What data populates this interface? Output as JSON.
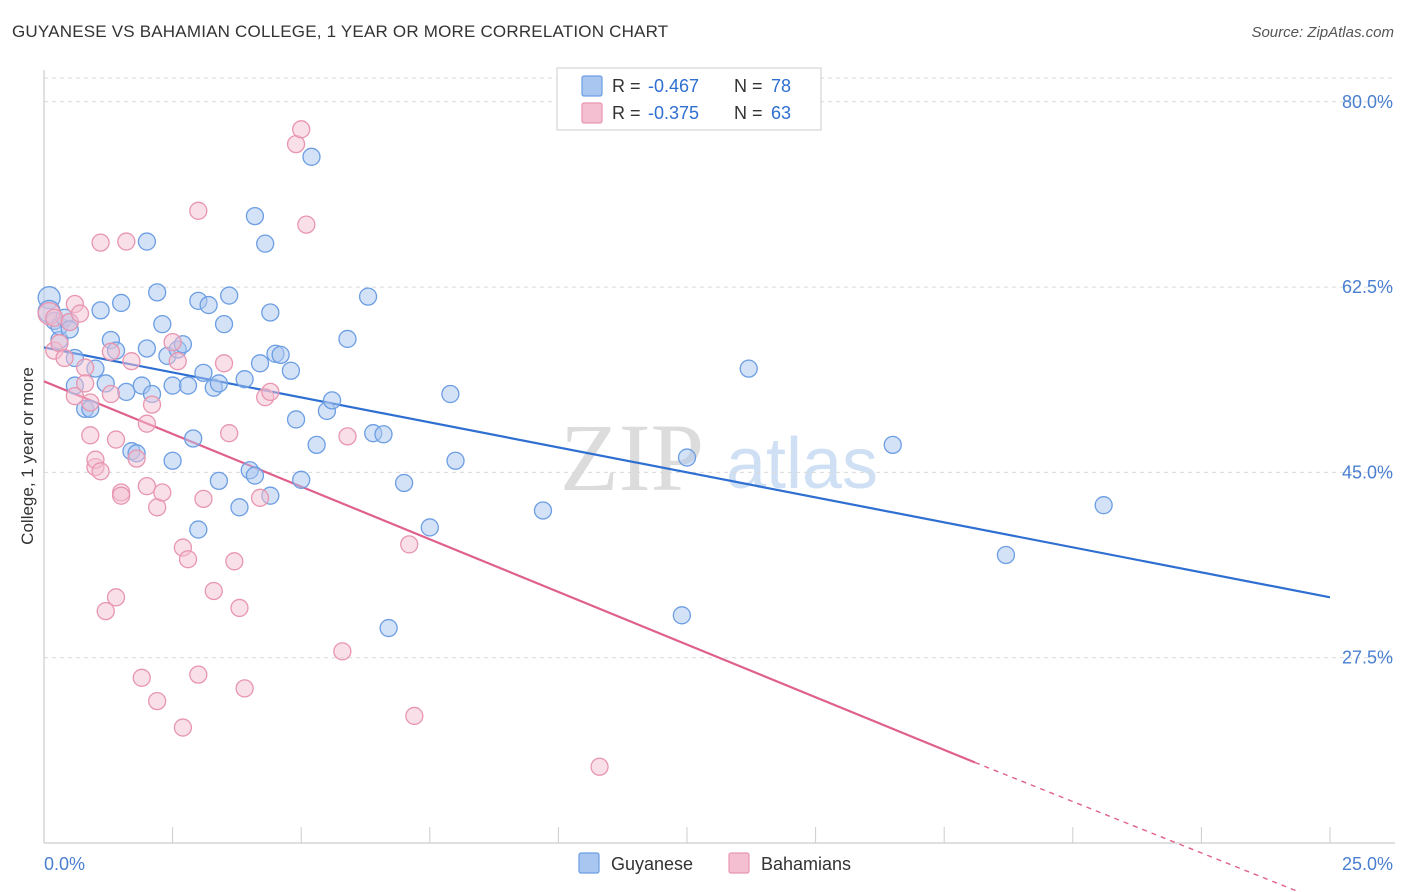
{
  "header": {
    "title": "GUYANESE VS BAHAMIAN COLLEGE, 1 YEAR OR MORE CORRELATION CHART",
    "source": "Source: ZipAtlas.com"
  },
  "watermark": {
    "zip": "ZIP",
    "atlas": "atlas"
  },
  "chart_data": {
    "type": "scatter",
    "title": "GUYANESE VS BAHAMIAN COLLEGE, 1 YEAR OR MORE CORRELATION CHART",
    "xlabel": "",
    "ylabel": "College, 1 year or more",
    "xlim": [
      0,
      25
    ],
    "ylim": [
      10,
      83
    ],
    "x_tick_labels": [
      "0.0%",
      "25.0%"
    ],
    "y_ticks": [
      27.5,
      45.0,
      62.5,
      80.0
    ],
    "y_tick_labels": [
      "27.5%",
      "45.0%",
      "62.5%",
      "80.0%"
    ],
    "grid": true,
    "legend": {
      "position": "top-center",
      "entries": [
        {
          "r_label": "R =",
          "r_value": "-0.467",
          "n_label": "N =",
          "n_value": "78"
        },
        {
          "r_label": "R =",
          "r_value": "-0.375",
          "n_label": "N =",
          "n_value": "63"
        }
      ]
    },
    "bottom_legend": [
      "Guyanese",
      "Bahamians"
    ],
    "series": [
      {
        "name": "Guyanese",
        "color": "#6c9ee3",
        "fill": "#a9c6f0",
        "line_color": "#2e6fd1",
        "trend": {
          "x": [
            0,
            25
          ],
          "y": [
            56.8,
            33.2
          ],
          "solid_until": 25
        },
        "points": [
          [
            0.1,
            61.5
          ],
          [
            0.1,
            60.2
          ],
          [
            0.2,
            59.3
          ],
          [
            0.3,
            57.5
          ],
          [
            0.3,
            58.8
          ],
          [
            0.4,
            59.6
          ],
          [
            0.5,
            59.2
          ],
          [
            0.5,
            58.5
          ],
          [
            0.6,
            55.8
          ],
          [
            0.6,
            53.2
          ],
          [
            0.8,
            51.0
          ],
          [
            0.9,
            51.0
          ],
          [
            1.0,
            54.8
          ],
          [
            1.1,
            60.3
          ],
          [
            1.2,
            53.4
          ],
          [
            1.3,
            57.5
          ],
          [
            1.4,
            56.5
          ],
          [
            1.5,
            61.0
          ],
          [
            1.6,
            52.6
          ],
          [
            1.7,
            47.0
          ],
          [
            1.8,
            46.8
          ],
          [
            1.9,
            53.2
          ],
          [
            2.0,
            56.7
          ],
          [
            2.0,
            66.8
          ],
          [
            2.1,
            52.4
          ],
          [
            2.2,
            62.0
          ],
          [
            2.3,
            59.0
          ],
          [
            2.4,
            56.0
          ],
          [
            2.5,
            53.2
          ],
          [
            2.5,
            46.1
          ],
          [
            2.6,
            56.6
          ],
          [
            2.7,
            57.1
          ],
          [
            2.8,
            53.2
          ],
          [
            2.9,
            48.2
          ],
          [
            3.0,
            39.6
          ],
          [
            3.0,
            61.2
          ],
          [
            3.1,
            54.4
          ],
          [
            3.2,
            60.8
          ],
          [
            3.3,
            53.0
          ],
          [
            3.4,
            53.4
          ],
          [
            3.4,
            44.2
          ],
          [
            3.5,
            59.0
          ],
          [
            3.6,
            61.7
          ],
          [
            3.8,
            41.7
          ],
          [
            3.9,
            53.8
          ],
          [
            4.0,
            45.2
          ],
          [
            4.1,
            44.7
          ],
          [
            4.1,
            69.2
          ],
          [
            4.2,
            55.3
          ],
          [
            4.3,
            66.6
          ],
          [
            4.4,
            42.8
          ],
          [
            4.4,
            60.1
          ],
          [
            4.5,
            56.2
          ],
          [
            4.6,
            56.1
          ],
          [
            4.8,
            54.6
          ],
          [
            4.9,
            50.0
          ],
          [
            5.0,
            44.3
          ],
          [
            5.2,
            74.8
          ],
          [
            5.3,
            47.6
          ],
          [
            5.5,
            50.8
          ],
          [
            5.6,
            51.8
          ],
          [
            5.9,
            57.6
          ],
          [
            6.3,
            61.6
          ],
          [
            6.4,
            48.7
          ],
          [
            6.6,
            48.6
          ],
          [
            6.7,
            30.3
          ],
          [
            7.0,
            44.0
          ],
          [
            7.5,
            39.8
          ],
          [
            7.9,
            52.4
          ],
          [
            8.0,
            46.1
          ],
          [
            9.7,
            41.4
          ],
          [
            12.4,
            31.5
          ],
          [
            12.5,
            46.4
          ],
          [
            13.7,
            54.8
          ],
          [
            16.5,
            47.6
          ],
          [
            18.7,
            37.2
          ],
          [
            20.6,
            41.9
          ]
        ]
      },
      {
        "name": "Bahamians",
        "color": "#e896b0",
        "fill": "#f4c0d1",
        "line_color": "#e0608d",
        "trend": {
          "x": [
            0,
            18.1
          ],
          "y": [
            53.6,
            17.6
          ],
          "dashed_to": [
            18.1,
            24.8
          ],
          "dashed_to_y": [
            17.6,
            4.6
          ]
        },
        "points": [
          [
            0.1,
            60.0
          ],
          [
            0.2,
            59.6
          ],
          [
            0.2,
            56.5
          ],
          [
            0.3,
            57.2
          ],
          [
            0.4,
            55.8
          ],
          [
            0.5,
            59.2
          ],
          [
            0.6,
            52.2
          ],
          [
            0.6,
            60.9
          ],
          [
            0.7,
            60.0
          ],
          [
            0.8,
            54.9
          ],
          [
            0.8,
            53.4
          ],
          [
            0.9,
            51.6
          ],
          [
            0.9,
            48.5
          ],
          [
            1.0,
            45.5
          ],
          [
            1.0,
            46.2
          ],
          [
            1.1,
            66.7
          ],
          [
            1.1,
            45.1
          ],
          [
            1.2,
            31.9
          ],
          [
            1.3,
            56.4
          ],
          [
            1.3,
            52.4
          ],
          [
            1.4,
            48.1
          ],
          [
            1.4,
            33.2
          ],
          [
            1.5,
            43.1
          ],
          [
            1.5,
            42.8
          ],
          [
            1.6,
            66.8
          ],
          [
            1.7,
            55.5
          ],
          [
            1.8,
            46.3
          ],
          [
            1.9,
            25.6
          ],
          [
            2.0,
            49.6
          ],
          [
            2.0,
            43.7
          ],
          [
            2.1,
            51.4
          ],
          [
            2.2,
            23.4
          ],
          [
            2.2,
            41.7
          ],
          [
            2.3,
            43.1
          ],
          [
            2.5,
            57.3
          ],
          [
            2.6,
            55.5
          ],
          [
            2.7,
            37.9
          ],
          [
            2.7,
            20.9
          ],
          [
            2.8,
            36.8
          ],
          [
            3.0,
            69.7
          ],
          [
            3.0,
            25.9
          ],
          [
            3.1,
            42.5
          ],
          [
            3.3,
            33.8
          ],
          [
            3.5,
            55.3
          ],
          [
            3.6,
            48.7
          ],
          [
            3.7,
            36.6
          ],
          [
            3.8,
            32.2
          ],
          [
            3.9,
            24.6
          ],
          [
            4.2,
            42.6
          ],
          [
            4.3,
            52.1
          ],
          [
            4.4,
            52.6
          ],
          [
            4.9,
            76.0
          ],
          [
            5.0,
            77.4
          ],
          [
            5.1,
            68.4
          ],
          [
            5.8,
            28.1
          ],
          [
            5.9,
            48.4
          ],
          [
            7.1,
            38.2
          ],
          [
            7.2,
            22.0
          ],
          [
            10.8,
            17.2
          ]
        ]
      }
    ]
  }
}
